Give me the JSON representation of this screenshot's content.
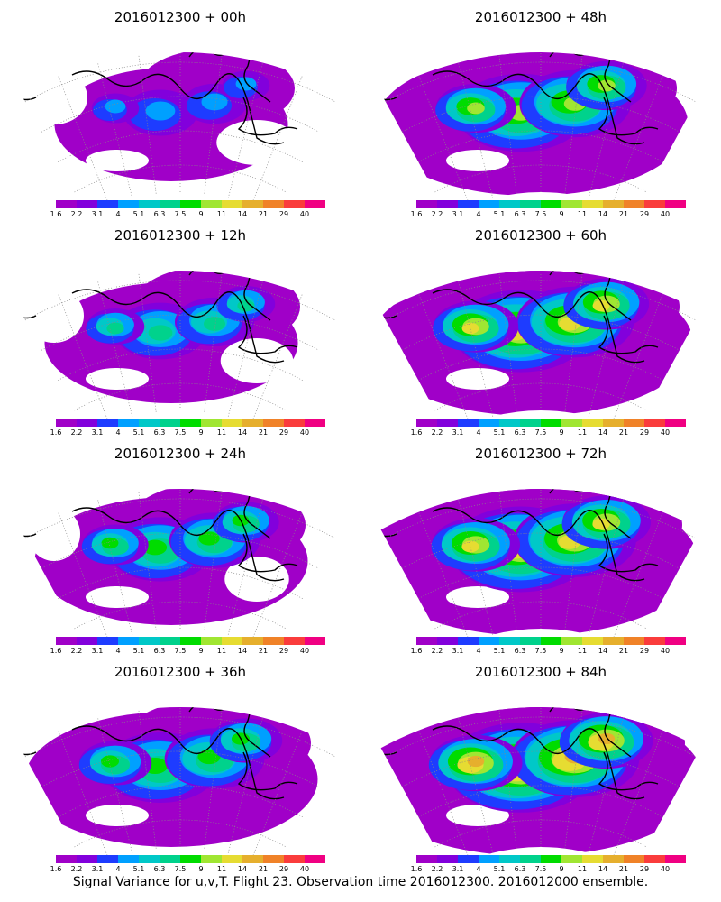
{
  "caption": "Signal Variance for u,v,T. Flight 23. Observation time 2016012300. 2016012000 ensemble.",
  "colorbar": {
    "labels": [
      "1.6",
      "2.2",
      "3.1",
      "4",
      "5.1",
      "6.3",
      "7.5",
      "9",
      "11",
      "14",
      "21",
      "29",
      "40"
    ],
    "colors": [
      "#a000c8",
      "#8200dc",
      "#1e3cff",
      "#00a0ff",
      "#00c8c8",
      "#00d28c",
      "#00dc00",
      "#a0e632",
      "#e6dc32",
      "#e6af2d",
      "#f08228",
      "#fa3c3c",
      "#f00082"
    ]
  },
  "panels": [
    {
      "title": "2016012300 + 00h",
      "intensity": 0.25,
      "coverage": 0.45
    },
    {
      "title": "2016012300 + 12h",
      "intensity": 0.45,
      "coverage": 0.55
    },
    {
      "title": "2016012300 + 24h",
      "intensity": 0.6,
      "coverage": 0.65
    },
    {
      "title": "2016012300 + 36h",
      "intensity": 0.68,
      "coverage": 0.75
    },
    {
      "title": "2016012300 + 48h",
      "intensity": 0.72,
      "coverage": 0.85
    },
    {
      "title": "2016012300 + 60h",
      "intensity": 0.82,
      "coverage": 0.9
    },
    {
      "title": "2016012300 + 72h",
      "intensity": 0.88,
      "coverage": 0.95
    },
    {
      "title": "2016012300 + 84h",
      "intensity": 0.95,
      "coverage": 1.0
    }
  ]
}
